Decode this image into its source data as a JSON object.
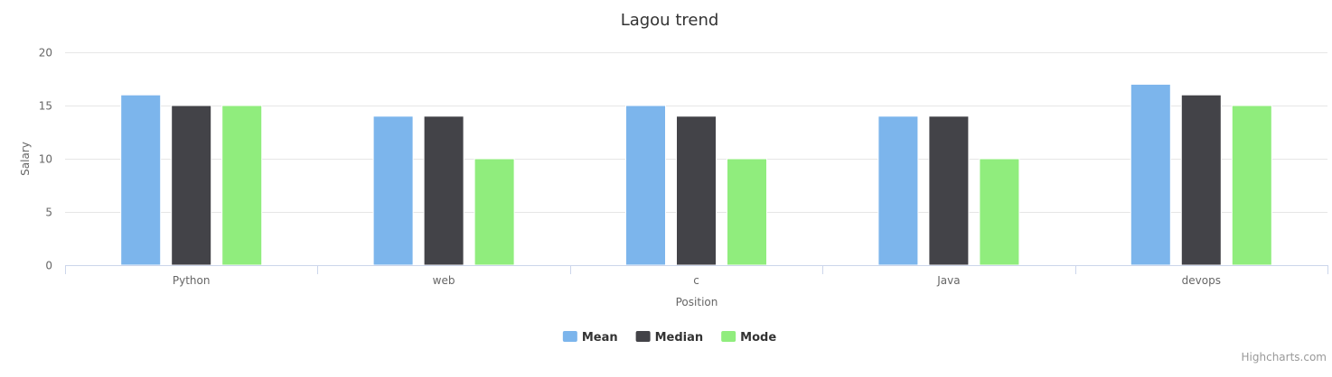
{
  "chart_data": {
    "type": "bar",
    "title": "Lagou trend",
    "xlabel": "Position",
    "ylabel": "Salary",
    "categories": [
      "Python",
      "web",
      "c",
      "Java",
      "devops"
    ],
    "ylim": [
      0,
      20
    ],
    "yticks": [
      0,
      5,
      10,
      15,
      20
    ],
    "grid": true,
    "legend": "bottom-center",
    "series": [
      {
        "name": "Mean",
        "color": "#7cb5ec",
        "values": [
          16,
          14,
          15,
          14,
          17
        ]
      },
      {
        "name": "Median",
        "color": "#434348",
        "values": [
          15,
          14,
          14,
          14,
          16
        ]
      },
      {
        "name": "Mode",
        "color": "#90ed7d",
        "values": [
          15,
          10,
          10,
          10,
          15
        ]
      }
    ]
  },
  "credits": "Highcharts.com"
}
